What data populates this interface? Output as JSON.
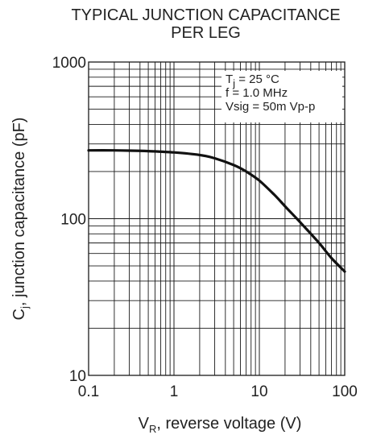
{
  "chart_data": {
    "type": "line",
    "title": [
      "TYPICAL JUNCTION CAPACITANCE",
      "PER LEG"
    ],
    "xlabel": {
      "main": "V",
      "sub": "R",
      "rest": ", reverse voltage (V)"
    },
    "ylabel": {
      "main": "C",
      "sub": "j",
      "rest": ", junction capacitance (pF)"
    },
    "xscale": "log",
    "yscale": "log",
    "xlim": [
      0.1,
      100
    ],
    "ylim": [
      10,
      1000
    ],
    "grid": true,
    "x_ticks": [
      "0.1",
      "1",
      "10",
      "100"
    ],
    "y_ticks": [
      "10",
      "100",
      "1000"
    ],
    "annotation": [
      {
        "main": "T",
        "sub": "j",
        "rest": " = 25 °C"
      },
      {
        "main": "f = 1.0 MHz",
        "sub": "",
        "rest": ""
      },
      {
        "main": "Vsig = 50m Vp-p",
        "sub": "",
        "rest": ""
      }
    ],
    "series": [
      {
        "x": [
          0.1,
          0.2,
          0.3,
          0.5,
          1,
          2,
          3,
          5,
          7,
          10,
          15,
          20,
          30,
          50,
          70,
          100
        ],
        "y": [
          273,
          273,
          272,
          270,
          265,
          255,
          243,
          220,
          200,
          175,
          142,
          120,
          95,
          70,
          56,
          46
        ]
      }
    ]
  }
}
